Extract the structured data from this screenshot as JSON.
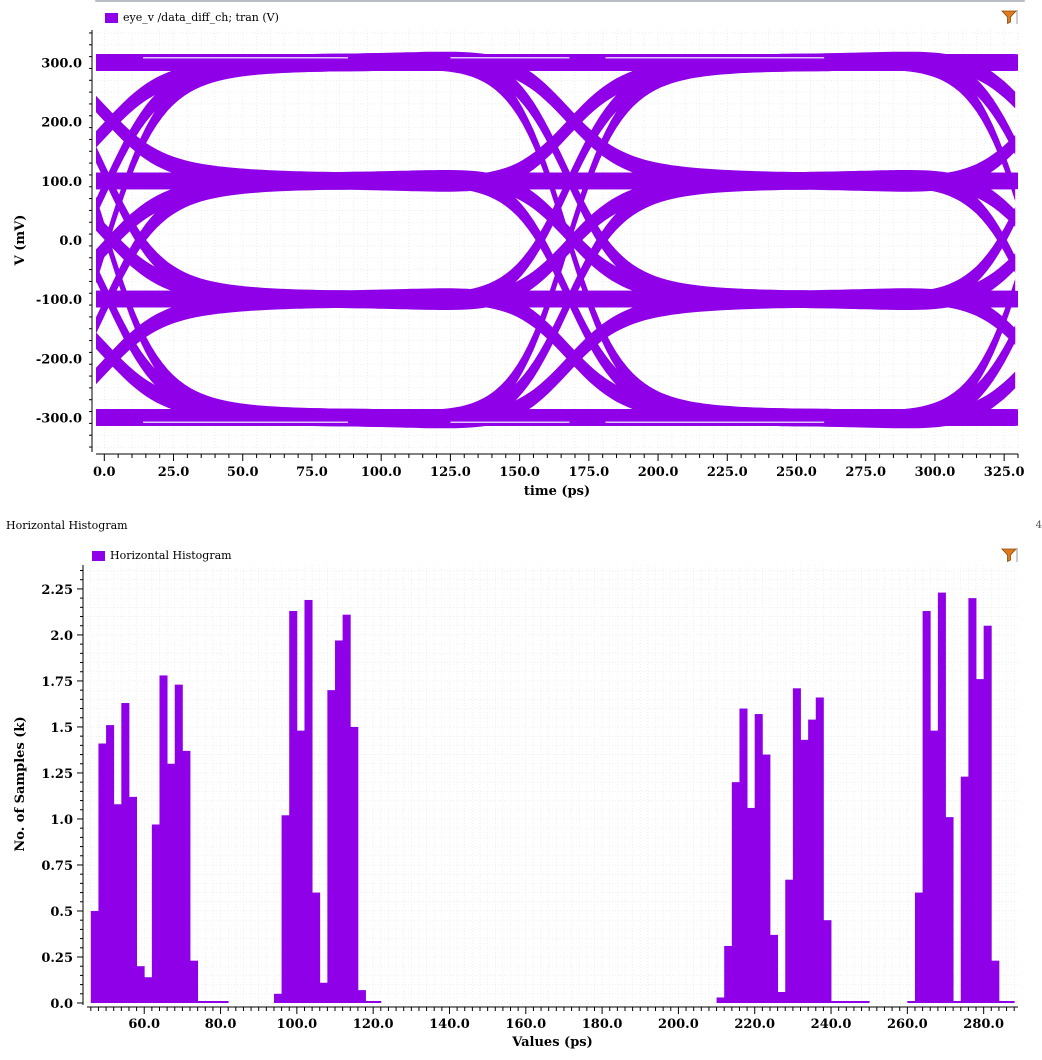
{
  "accent_color": "#8f00e8",
  "eye": {
    "legend_label": "eye_v /data_diff_ch; tran (V)",
    "filter_icon": "filter-icon"
  },
  "histogram": {
    "panel_title": "Horizontal Histogram",
    "legend_label": "Horizontal Histogram",
    "filter_icon": "filter-icon",
    "edge_label": "4"
  },
  "chart_data": [
    {
      "type": "line",
      "title": "",
      "series": [
        {
          "name": "eye_v /data_diff_ch; tran (V)"
        }
      ],
      "xlabel": "time (ps)",
      "ylabel": "V (mV)",
      "xlim": [
        -3,
        330
      ],
      "ylim": [
        -355,
        355
      ],
      "xticks": [
        0.0,
        25.0,
        50.0,
        75.0,
        100.0,
        125.0,
        150.0,
        175.0,
        200.0,
        225.0,
        250.0,
        275.0,
        300.0,
        325.0
      ],
      "yticks": [
        300.0,
        200.0,
        100.0,
        0.0,
        -100.0,
        -200.0,
        -300.0
      ],
      "xtick_labels": [
        "0.0",
        "25.0",
        "50.0",
        "75.0",
        "100.0",
        "125.0",
        "150.0",
        "175.0",
        "200.0",
        "225.0",
        "250.0",
        "275.0",
        "300.0",
        "325.0"
      ],
      "ytick_labels": [
        "300.0",
        "200.0",
        "100.0",
        "0.0",
        "-100.0",
        "-200.0",
        "-300.0"
      ],
      "ui_ps": 166.7,
      "levels_mv": [
        300,
        100,
        -100,
        -300
      ],
      "band_width_mv": 28,
      "grid": true,
      "legend_position": "top-left"
    },
    {
      "type": "bar",
      "title": "",
      "series": [
        {
          "name": "Horizontal Histogram"
        }
      ],
      "xlabel": "Values (ps)",
      "ylabel": "No. of Samples (k)",
      "xlim": [
        45,
        289
      ],
      "ylim": [
        0,
        2.38
      ],
      "xticks": [
        60.0,
        80.0,
        100.0,
        120.0,
        140.0,
        160.0,
        180.0,
        200.0,
        220.0,
        240.0,
        260.0,
        280.0
      ],
      "yticks": [
        0.0,
        0.25,
        0.5,
        0.75,
        1.0,
        1.25,
        1.5,
        1.75,
        2.0,
        2.25
      ],
      "xtick_labels": [
        "60.0",
        "80.0",
        "100.0",
        "120.0",
        "140.0",
        "160.0",
        "180.0",
        "200.0",
        "220.0",
        "240.0",
        "260.0",
        "280.0"
      ],
      "ytick_labels": [
        "0.0",
        "0.25",
        "0.5",
        "0.75",
        "1.0",
        "1.25",
        "1.5",
        "1.75",
        "2.0",
        "2.25"
      ],
      "bin_width_ps": 2.0,
      "x": [
        47,
        49,
        51,
        53,
        55,
        57,
        59,
        61,
        63,
        65,
        67,
        69,
        71,
        73,
        75,
        77,
        79,
        81,
        95,
        97,
        99,
        101,
        103,
        105,
        107,
        109,
        111,
        113,
        115,
        117,
        119,
        121,
        211,
        213,
        215,
        217,
        219,
        221,
        223,
        225,
        227,
        229,
        231,
        233,
        235,
        237,
        239,
        241,
        243,
        245,
        247,
        249,
        261,
        263,
        265,
        267,
        269,
        271,
        273,
        275,
        277,
        279,
        281,
        283,
        285,
        287
      ],
      "values": [
        0.5,
        1.41,
        1.51,
        1.08,
        1.63,
        1.12,
        0.2,
        0.14,
        0.97,
        1.78,
        1.3,
        1.73,
        1.37,
        0.23,
        0.01,
        0.0,
        0.0,
        0.0,
        0.05,
        1.02,
        2.13,
        1.48,
        2.19,
        0.6,
        0.11,
        1.7,
        1.97,
        2.11,
        1.5,
        0.07,
        0.0,
        0.0,
        0.03,
        0.31,
        1.2,
        1.6,
        1.06,
        1.57,
        1.35,
        0.37,
        0.06,
        0.67,
        1.71,
        1.43,
        1.54,
        1.66,
        0.45,
        0.01,
        0.0,
        0.0,
        0.0,
        0.0,
        0.01,
        0.6,
        2.13,
        1.48,
        2.23,
        1.01,
        0.0,
        1.23,
        2.2,
        1.76,
        2.05,
        0.23,
        0.0,
        0.0
      ],
      "grid": true,
      "legend_position": "top-left"
    }
  ]
}
